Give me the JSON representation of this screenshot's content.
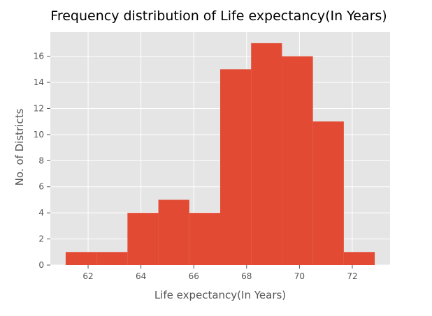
{
  "chart_data": {
    "type": "bar",
    "title": "Frequency distribution of Life expectancy(In Years)",
    "xlabel": "Life expectancy(In Years)",
    "ylabel": "No. of Districts",
    "bins": [
      {
        "start": 61.15,
        "end": 62.32,
        "count": 1
      },
      {
        "start": 62.32,
        "end": 63.49,
        "count": 1
      },
      {
        "start": 63.49,
        "end": 64.66,
        "count": 4
      },
      {
        "start": 64.66,
        "end": 65.83,
        "count": 5
      },
      {
        "start": 65.83,
        "end": 67.0,
        "count": 4
      },
      {
        "start": 67.0,
        "end": 68.17,
        "count": 15
      },
      {
        "start": 68.17,
        "end": 69.34,
        "count": 17
      },
      {
        "start": 69.34,
        "end": 70.51,
        "count": 16
      },
      {
        "start": 70.51,
        "end": 71.68,
        "count": 11
      },
      {
        "start": 71.68,
        "end": 72.85,
        "count": 1
      }
    ],
    "xlim": [
      60.57,
      73.43
    ],
    "ylim": [
      0,
      17.85
    ],
    "xticks": [
      62,
      64,
      66,
      68,
      70,
      72
    ],
    "yticks": [
      0,
      2,
      4,
      6,
      8,
      10,
      12,
      14,
      16
    ],
    "grid": true,
    "bar_color": "#E24A33",
    "background_color": "#E5E5E5",
    "grid_color": "#FFFFFF"
  }
}
